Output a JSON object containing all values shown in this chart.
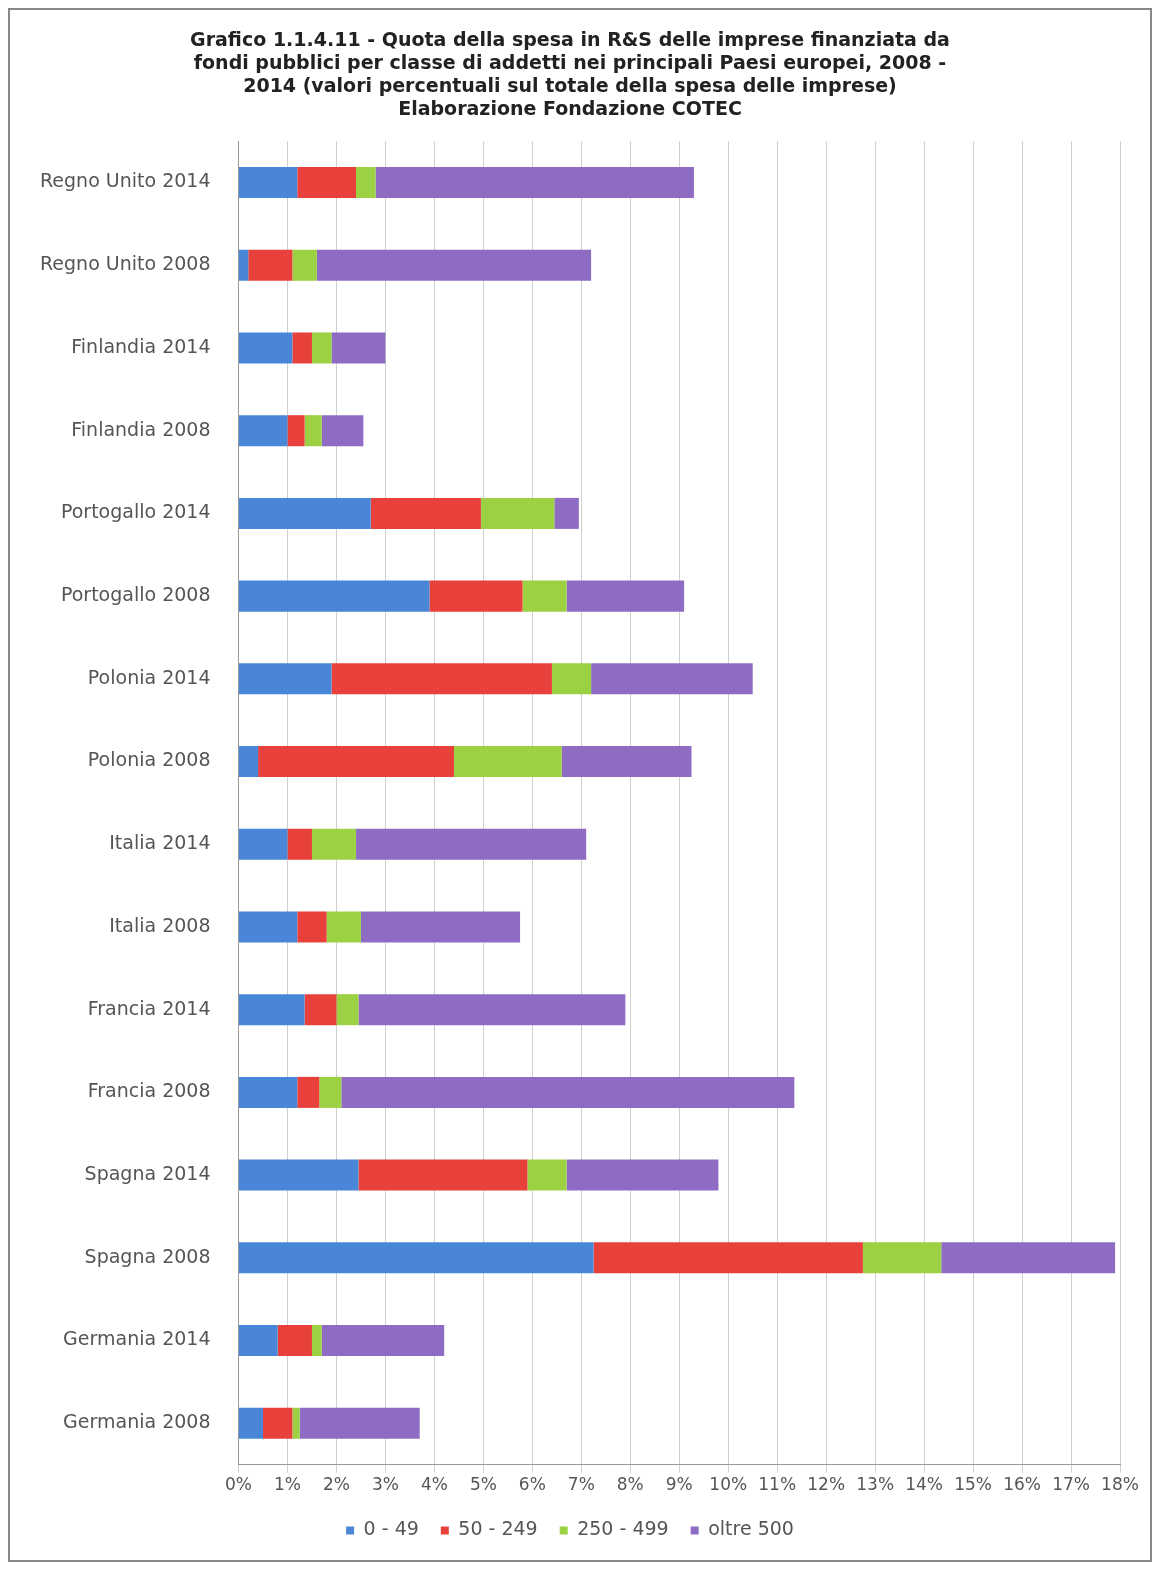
{
  "chart_data": {
    "type": "bar",
    "orientation": "horizontal",
    "stacked": true,
    "title": "Grafico 1.1.4.11 - Quota della spesa in R&S delle imprese finanziata da\nfondi pubblici per classe di addetti nei principali Paesi europei, 2008 -\n2014 (valori percentuali sul totale della spesa delle imprese)\nElaborazione Fondazione COTEC",
    "categories": [
      "Regno Unito 2014",
      "Regno Unito 2008",
      "Finlandia 2014",
      "Finlandia 2008",
      "Portogallo 2014",
      "Portogallo 2008",
      "Polonia 2014",
      "Polonia 2008",
      "Italia 2014",
      "Italia 2008",
      "Francia 2014",
      "Francia 2008",
      "Spagna 2014",
      "Spagna 2008",
      "Germania 2014",
      "Germania 2008"
    ],
    "series": [
      {
        "name": "0 - 49",
        "color": "#4a86d8",
        "values": [
          1.2,
          0.2,
          1.1,
          1.0,
          2.7,
          3.9,
          1.9,
          0.4,
          1.0,
          1.2,
          1.35,
          1.2,
          2.45,
          7.25,
          0.8,
          0.5
        ]
      },
      {
        "name": "50 - 249",
        "color": "#e8403a",
        "values": [
          1.2,
          0.9,
          0.4,
          0.35,
          2.25,
          1.9,
          4.5,
          4.0,
          0.5,
          0.6,
          0.65,
          0.45,
          3.45,
          5.5,
          0.7,
          0.6
        ]
      },
      {
        "name": "250 - 499",
        "color": "#9bd142",
        "values": [
          0.4,
          0.5,
          0.4,
          0.35,
          1.5,
          0.9,
          0.8,
          2.2,
          0.9,
          0.7,
          0.45,
          0.45,
          0.8,
          1.6,
          0.2,
          0.15
        ]
      },
      {
        "name": "oltre 500",
        "color": "#8e6cc4",
        "values": [
          6.5,
          5.6,
          1.1,
          0.85,
          0.5,
          2.4,
          3.3,
          2.65,
          4.7,
          3.25,
          5.45,
          9.25,
          3.1,
          3.55,
          2.5,
          2.45
        ]
      }
    ],
    "xlim": [
      0,
      18
    ],
    "xticks": [
      {
        "value": 0,
        "label": "0%"
      },
      {
        "value": 1,
        "label": "1%"
      },
      {
        "value": 2,
        "label": "2%"
      },
      {
        "value": 3,
        "label": "3%"
      },
      {
        "value": 4,
        "label": "4%"
      },
      {
        "value": 5,
        "label": "5%"
      },
      {
        "value": 6,
        "label": "6%"
      },
      {
        "value": 7,
        "label": "7%"
      },
      {
        "value": 8,
        "label": "8%"
      },
      {
        "value": 9,
        "label": "9%"
      },
      {
        "value": 10,
        "label": "10%"
      },
      {
        "value": 11,
        "label": "11%"
      },
      {
        "value": 12,
        "label": "12%"
      },
      {
        "value": 13,
        "label": "13%"
      },
      {
        "value": 14,
        "label": "14%"
      },
      {
        "value": 15,
        "label": "15%"
      },
      {
        "value": 16,
        "label": "16%"
      },
      {
        "value": 17,
        "label": "17%"
      },
      {
        "value": 18,
        "label": "18%"
      }
    ],
    "grid": "x",
    "legend": "bottom"
  }
}
